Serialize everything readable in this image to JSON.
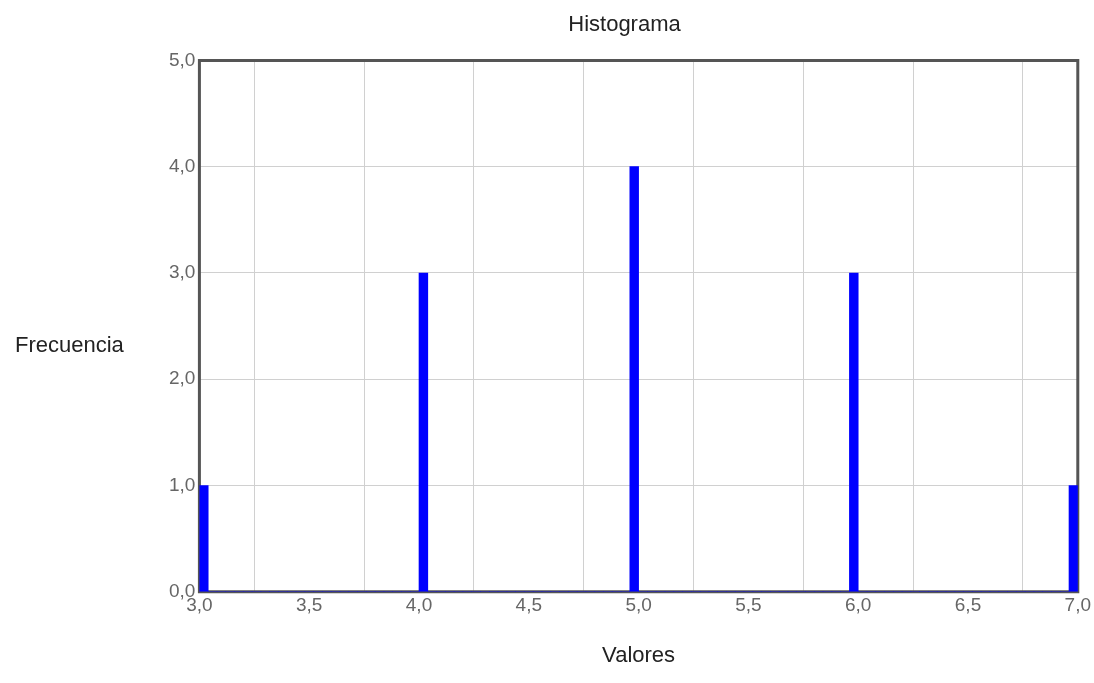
{
  "chart_data": {
    "type": "histogram",
    "title": "Histograma",
    "xlabel": "Valores",
    "ylabel": "Frecuencia",
    "color": "#0000ff",
    "bins": [
      3,
      3.04,
      3.08,
      3.12,
      3.16,
      3.2,
      3.24,
      3.28,
      3.32,
      3.36,
      3.4,
      3.44,
      3.48,
      3.52,
      3.56,
      3.6,
      3.64,
      3.68,
      3.72,
      3.76,
      3.8,
      3.84,
      3.88,
      3.92,
      3.96,
      4,
      4.04,
      4.08,
      4.12,
      4.16,
      4.2,
      4.24,
      4.28,
      4.32,
      4.36,
      4.4,
      4.44,
      4.48,
      4.52,
      4.56,
      4.6,
      4.64,
      4.68,
      4.72,
      4.76,
      4.8,
      4.84,
      4.88,
      4.92,
      4.96,
      5,
      5.04,
      5.08,
      5.12,
      5.16,
      5.2,
      5.24,
      5.28,
      5.32,
      5.36,
      5.4,
      5.44,
      5.48,
      5.52,
      5.56,
      5.6,
      5.64,
      5.68,
      5.72,
      5.76,
      5.8,
      5.84,
      5.88,
      5.92,
      5.96,
      6,
      6.04,
      6.08,
      6.12,
      6.16,
      6.2,
      6.24,
      6.28,
      6.32,
      6.36,
      6.4,
      6.44,
      6.48,
      6.52,
      6.56,
      6.6,
      6.64,
      6.68,
      6.72,
      6.76,
      6.8,
      6.84,
      6.88,
      6.92,
      6.96,
      7
    ],
    "values": [
      1,
      0,
      0,
      0,
      0,
      0,
      0,
      0,
      0,
      0,
      0,
      0,
      0,
      0,
      0,
      0,
      0,
      0,
      0,
      0,
      0,
      0,
      0,
      0,
      0,
      3,
      0,
      0,
      0,
      0,
      0,
      0,
      0,
      0,
      0,
      0,
      0,
      0,
      0,
      0,
      0,
      0,
      0,
      0,
      0,
      0,
      0,
      0,
      0,
      4,
      0,
      0,
      0,
      0,
      0,
      0,
      0,
      0,
      0,
      0,
      0,
      0,
      0,
      0,
      0,
      0,
      0,
      0,
      0,
      0,
      0,
      0,
      0,
      0,
      3,
      0,
      0,
      0,
      0,
      0,
      0,
      0,
      0,
      0,
      0,
      0,
      0,
      0,
      0,
      0,
      0,
      0,
      0,
      0,
      0,
      0,
      0,
      0,
      0,
      1
    ],
    "xlim": [
      3,
      7
    ],
    "xticks": [
      {
        "value": 3,
        "label": "3,0"
      },
      {
        "value": 3.5,
        "label": "3,5"
      },
      {
        "value": 4,
        "label": "4,0"
      },
      {
        "value": 4.5,
        "label": "4,5"
      },
      {
        "value": 5,
        "label": "5,0"
      },
      {
        "value": 5.5,
        "label": "5,5"
      },
      {
        "value": 6,
        "label": "6,0"
      },
      {
        "value": 6.5,
        "label": "6,5"
      },
      {
        "value": 7,
        "label": "7,0"
      }
    ],
    "ylim": [
      0,
      5
    ],
    "yticks": [
      {
        "value": 0,
        "label": "0,0"
      },
      {
        "value": 1,
        "label": "1,0"
      },
      {
        "value": 2,
        "label": "2,0"
      },
      {
        "value": 3,
        "label": "3,0"
      },
      {
        "value": 4,
        "label": "4,0"
      },
      {
        "value": 5,
        "label": "5,0"
      }
    ],
    "grid": true
  }
}
